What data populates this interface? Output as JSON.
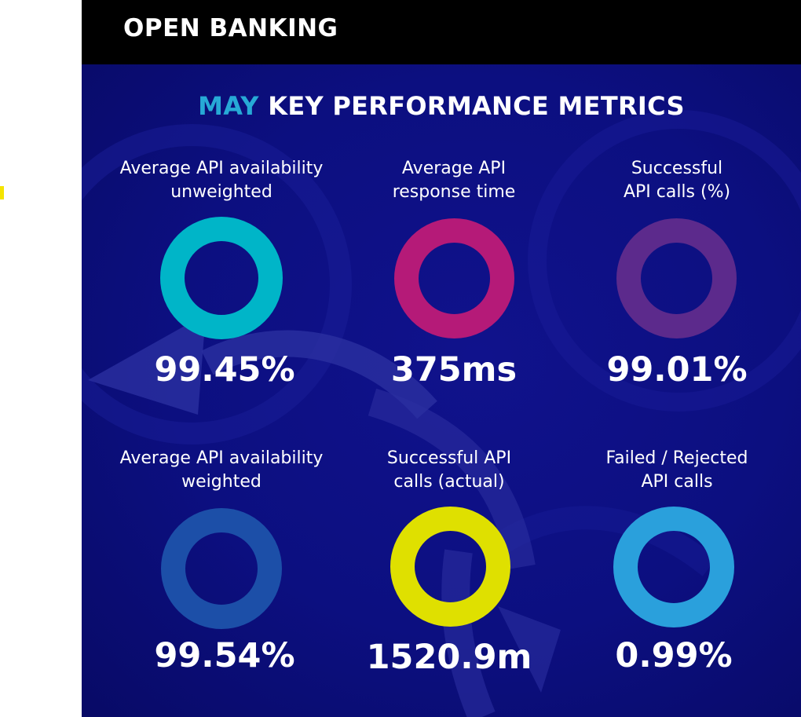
{
  "header": {
    "title": "OPEN BANKING"
  },
  "panel": {
    "title_accent": "MAY",
    "title_rest": " KEY PERFORMANCE METRICS"
  },
  "metrics": [
    {
      "label_line1": "Average API availability",
      "label_line2": "unweighted",
      "value": "99.45%",
      "ring_color": "#00b5c8"
    },
    {
      "label_line1": "Average API",
      "label_line2": "response time",
      "value": "375ms",
      "ring_color": "#b51a78"
    },
    {
      "label_line1": "Successful",
      "label_line2": "API calls (%)",
      "value": "99.01%",
      "ring_color": "#5c2a8c"
    },
    {
      "label_line1": "Average API availability",
      "label_line2": "weighted",
      "value": "99.54%",
      "ring_color": "#1c4fa8"
    },
    {
      "label_line1": "Successful API",
      "label_line2": "calls (actual)",
      "value": "1520.9m",
      "ring_color": "#dfe000"
    },
    {
      "label_line1": "Failed / Rejected",
      "label_line2": "API calls",
      "value": "0.99%",
      "ring_color": "#2aa0dc"
    }
  ]
}
